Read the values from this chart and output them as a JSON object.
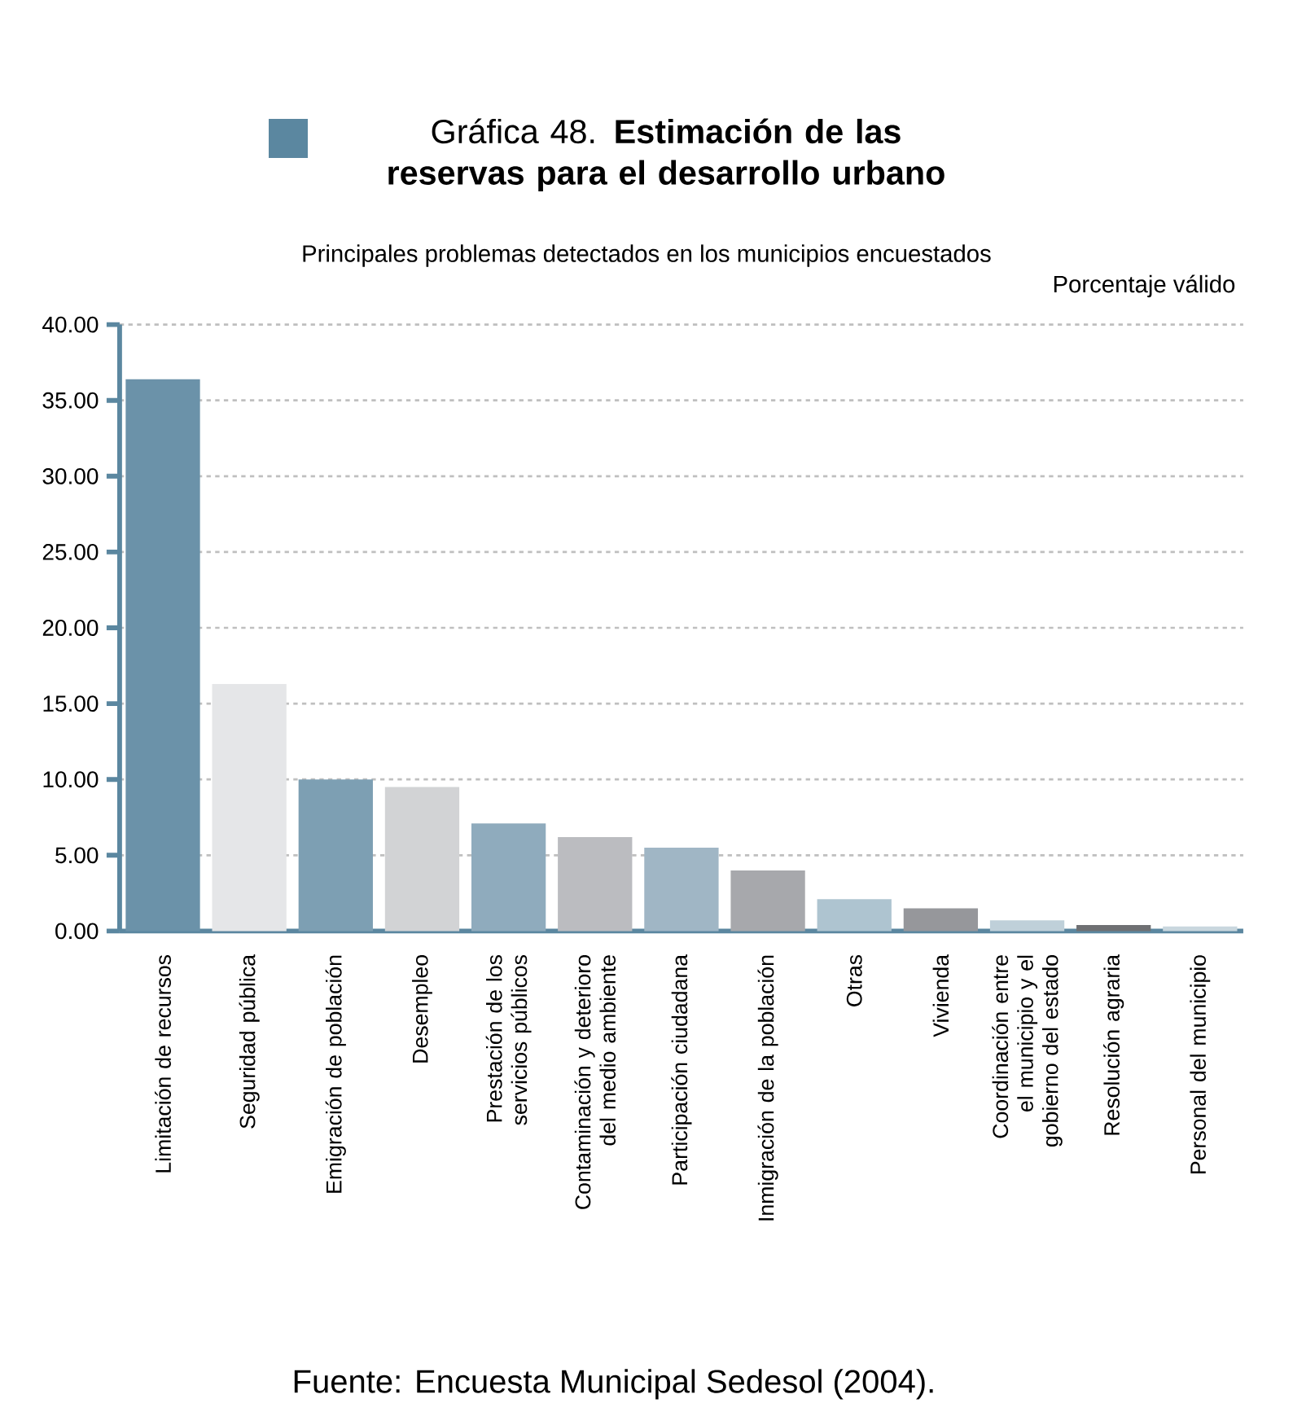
{
  "chart_data": {
    "type": "bar",
    "title": "Gráfica 48. **Estimación de las reservas para el desarrollo urbano**",
    "subtitle": "Principales problemas detectados en los municipios encuestados",
    "ylabel": "Porcentaje válido",
    "categories": [
      "Limitación de recursos",
      "Seguridad pública",
      "Emigración de población",
      "Desempleo",
      "Prestación de los servicios públicos",
      "Contaminación y deterioro del medio ambiente",
      "Participación ciudadana",
      "Inmigración de la población",
      "Otras",
      "Vivienda",
      "Coordinación entre el municipio y el gobierno del estado",
      "Resolución agraria",
      "Personal del municipio"
    ],
    "values": [
      36.4,
      16.3,
      10.0,
      9.5,
      7.1,
      6.2,
      5.5,
      4.0,
      2.1,
      1.5,
      0.7,
      0.4,
      0.3
    ],
    "colors": [
      "#6b92a9",
      "#e5e6e8",
      "#7d9fb3",
      "#d2d3d5",
      "#8fabbd",
      "#bbbcc0",
      "#a0b6c5",
      "#a7a8ac",
      "#aec4d0",
      "#96979b",
      "#bfd0d9",
      "#6f7073",
      "#c9d7de"
    ],
    "ylim": [
      0,
      40
    ],
    "yticks": [
      {
        "value": 0,
        "label": "0.00"
      },
      {
        "value": 5,
        "label": "5.00"
      },
      {
        "value": 10,
        "label": "10.00"
      },
      {
        "value": 15,
        "label": "15.00"
      },
      {
        "value": 20,
        "label": "20.00"
      },
      {
        "value": 25,
        "label": "25.00"
      },
      {
        "value": 30,
        "label": "30.00"
      },
      {
        "value": 35,
        "label": "35.00"
      },
      {
        "value": 40,
        "label": "40.00"
      }
    ],
    "grid": "y",
    "annotations": [
      "Fuente: Encuesta Municipal Sedesol (2004)."
    ]
  }
}
